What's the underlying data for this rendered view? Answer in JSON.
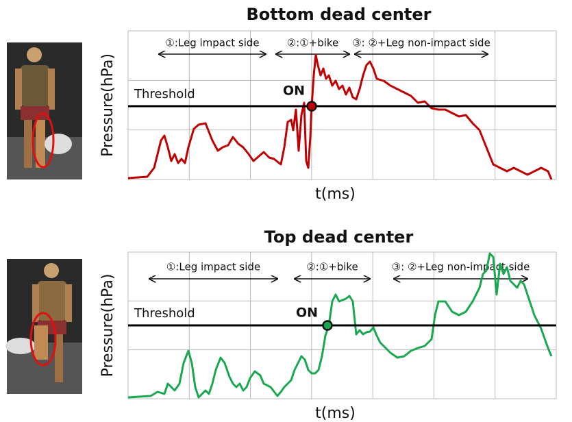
{
  "chart_data": [
    {
      "type": "line",
      "title": "Bottom dead center",
      "x_label": "t(ms)",
      "y_label": "Pressure(hPa)",
      "xlim": [
        0,
        625
      ],
      "ylim": [
        0,
        217
      ],
      "grid": true,
      "annotations": [
        "①:Leg impact side",
        "②:①+bike",
        "③: ②+Leg non-impact side"
      ],
      "threshold": {
        "label": "Threshold",
        "value": 107
      },
      "on_point": {
        "label": "ON",
        "x": 268,
        "y": 107,
        "color": "#c00000"
      },
      "series": [
        {
          "color": "#c00000",
          "x": [
            0,
            28,
            38,
            48,
            53,
            58,
            63,
            68,
            73,
            78,
            83,
            88,
            96,
            103,
            113,
            123,
            131,
            138,
            146,
            153,
            161,
            168,
            176,
            183,
            191,
            198,
            206,
            213,
            223,
            228,
            233,
            238,
            241,
            245,
            249,
            253,
            257,
            260,
            263,
            266,
            268,
            271,
            274,
            277,
            281,
            285,
            289,
            293,
            298,
            303,
            308,
            313,
            318,
            323,
            328,
            333,
            338,
            343,
            348,
            353,
            358,
            363,
            373,
            383,
            393,
            403,
            413,
            423,
            433,
            443,
            453,
            463,
            473,
            483,
            493,
            503,
            513,
            523,
            533,
            543,
            553,
            563,
            573,
            583,
            593,
            603,
            613,
            618
          ],
          "values": [
            2,
            4,
            17,
            57,
            64,
            47,
            27,
            37,
            24,
            30,
            24,
            47,
            74,
            80,
            82,
            57,
            42,
            47,
            50,
            62,
            52,
            47,
            37,
            27,
            34,
            40,
            32,
            30,
            22,
            47,
            84,
            87,
            72,
            102,
            42,
            94,
            112,
            27,
            17,
            62,
            107,
            152,
            182,
            167,
            152,
            162,
            147,
            152,
            137,
            144,
            132,
            137,
            124,
            134,
            120,
            117,
            132,
            152,
            167,
            172,
            162,
            147,
            144,
            137,
            132,
            127,
            122,
            112,
            114,
            104,
            102,
            102,
            97,
            92,
            94,
            82,
            72,
            47,
            22,
            17,
            12,
            17,
            12,
            7,
            12,
            17,
            12,
            0
          ]
        }
      ]
    },
    {
      "type": "line",
      "title": "Top dead center",
      "x_label": "t(ms)",
      "y_label": "Pressure(hPa)",
      "xlim": [
        0,
        625
      ],
      "ylim": [
        0,
        214
      ],
      "grid": true,
      "annotations": [
        "①:Leg impact side",
        "②:①+bike",
        "③: ②+Leg non-impact side"
      ],
      "threshold": {
        "label": "Threshold",
        "value": 107
      },
      "on_point": {
        "label": "ON",
        "x": 291,
        "y": 107,
        "color": "#1aa84f"
      },
      "series": [
        {
          "color": "#1aa84f",
          "x": [
            0,
            33,
            43,
            53,
            58,
            68,
            75,
            81,
            88,
            93,
            98,
            103,
            108,
            113,
            118,
            123,
            128,
            135,
            141,
            148,
            153,
            158,
            163,
            168,
            173,
            178,
            185,
            193,
            198,
            208,
            218,
            223,
            228,
            233,
            238,
            243,
            248,
            253,
            258,
            263,
            268,
            273,
            278,
            283,
            288,
            293,
            298,
            303,
            308,
            313,
            318,
            323,
            328,
            333,
            338,
            343,
            348,
            353,
            358,
            363,
            368,
            373,
            383,
            393,
            403,
            413,
            423,
            433,
            443,
            448,
            453,
            463,
            473,
            483,
            493,
            503,
            513,
            518,
            523,
            528,
            533,
            538,
            543,
            548,
            553,
            558,
            563,
            568,
            573,
            578,
            583,
            588,
            593,
            603,
            613,
            618
          ],
          "values": [
            2,
            4,
            10,
            7,
            22,
            12,
            22,
            52,
            70,
            52,
            17,
            2,
            7,
            12,
            7,
            22,
            42,
            60,
            52,
            32,
            22,
            17,
            22,
            12,
            17,
            30,
            40,
            34,
            22,
            17,
            4,
            10,
            17,
            22,
            27,
            42,
            52,
            62,
            57,
            42,
            37,
            37,
            42,
            62,
            92,
            107,
            142,
            152,
            142,
            144,
            146,
            150,
            142,
            94,
            100,
            94,
            97,
            98,
            104,
            92,
            82,
            77,
            67,
            60,
            62,
            70,
            74,
            77,
            87,
            122,
            142,
            142,
            127,
            122,
            127,
            142,
            162,
            182,
            187,
            212,
            207,
            152,
            197,
            182,
            192,
            172,
            167,
            162,
            172,
            167,
            152,
            137,
            122,
            102,
            74,
            62
          ]
        }
      ]
    }
  ]
}
